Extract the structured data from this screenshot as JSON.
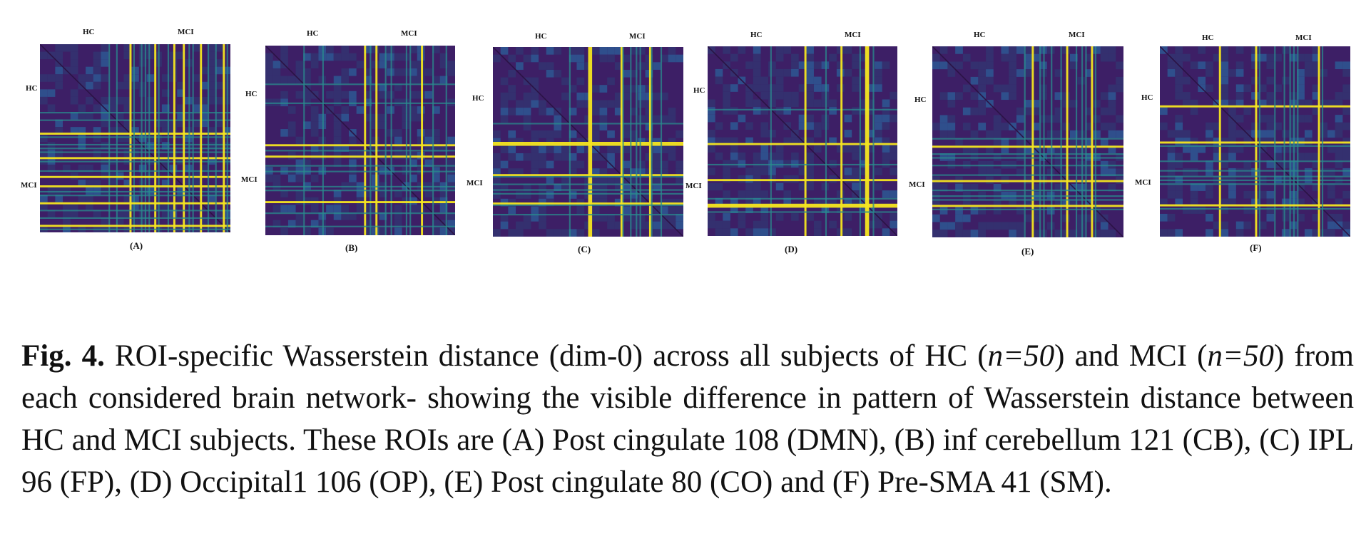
{
  "figure": {
    "panels": [
      {
        "id": "A",
        "label": "(A)",
        "col_labels": [
          "HC",
          "MCI"
        ],
        "row_labels": [
          "HC",
          "MCI"
        ],
        "hot_lines": [
          36,
          40,
          47,
          49,
          53,
          55,
          57,
          60,
          62,
          67,
          70,
          75,
          78,
          80,
          84,
          88,
          92,
          96,
          98
        ],
        "bright_lines": [
          47,
          60,
          70,
          75,
          84,
          96
        ]
      },
      {
        "id": "B",
        "label": "(B)",
        "col_labels": [
          "HC",
          "MCI"
        ],
        "row_labels": [
          "HC",
          "MCI"
        ],
        "hot_lines": [
          20,
          30,
          52,
          55,
          58,
          63,
          66,
          74,
          76,
          82,
          88,
          95
        ],
        "bright_lines": [
          52,
          58,
          82
        ]
      },
      {
        "id": "C",
        "label": "(C)",
        "col_labels": [
          "HC",
          "MCI"
        ],
        "row_labels": [
          "HC",
          "MCI"
        ],
        "hot_lines": [
          40,
          50,
          51,
          67,
          68,
          72,
          75,
          77,
          82,
          83,
          88
        ],
        "bright_lines": [
          50,
          51,
          67,
          82
        ]
      },
      {
        "id": "D",
        "label": "(D)",
        "col_labels": [
          "HC",
          "MCI"
        ],
        "row_labels": [
          "HC",
          "MCI"
        ],
        "hot_lines": [
          33,
          51,
          62,
          70,
          80,
          83,
          84,
          87
        ],
        "bright_lines": [
          51,
          70,
          83,
          84
        ]
      },
      {
        "id": "E",
        "label": "(E)",
        "col_labels": [
          "HC",
          "MCI"
        ],
        "row_labels": [
          "HC",
          "MCI"
        ],
        "hot_lines": [
          48,
          52,
          56,
          58,
          62,
          67,
          70,
          75,
          78,
          80,
          83,
          85
        ],
        "bright_lines": [
          52,
          70,
          83
        ]
      },
      {
        "id": "F",
        "label": "(F)",
        "col_labels": [
          "HC",
          "MCI"
        ],
        "row_labels": [
          "HC",
          "MCI"
        ],
        "hot_lines": [
          31,
          50,
          52,
          60,
          65,
          68,
          70,
          72,
          83,
          85
        ],
        "bright_lines": [
          31,
          50,
          83
        ]
      }
    ],
    "colormap": {
      "low": "#3b1c5c",
      "mid": "#2a8c8e",
      "high": "#f6e620"
    }
  },
  "caption": {
    "fig_label": "Fig. 4.",
    "part1": " ROI-specific Wasserstein distance (dim-0) across all subjects of HC (",
    "n1": "n=50",
    "part2": ") and MCI (",
    "n2": "n=50",
    "part3": ") from each considered brain network- showing the visible difference in pattern of Wasserstein distance between HC and MCI subjects. These ROIs are (A) Post cingulate 108 (DMN), (B) inf cerebellum 121 (CB), (C) IPL 96 (FP), (D) Occipital1 106 (OP), (E) Post cingulate 80 (CO) and (F) Pre-SMA 41 (SM)."
  }
}
